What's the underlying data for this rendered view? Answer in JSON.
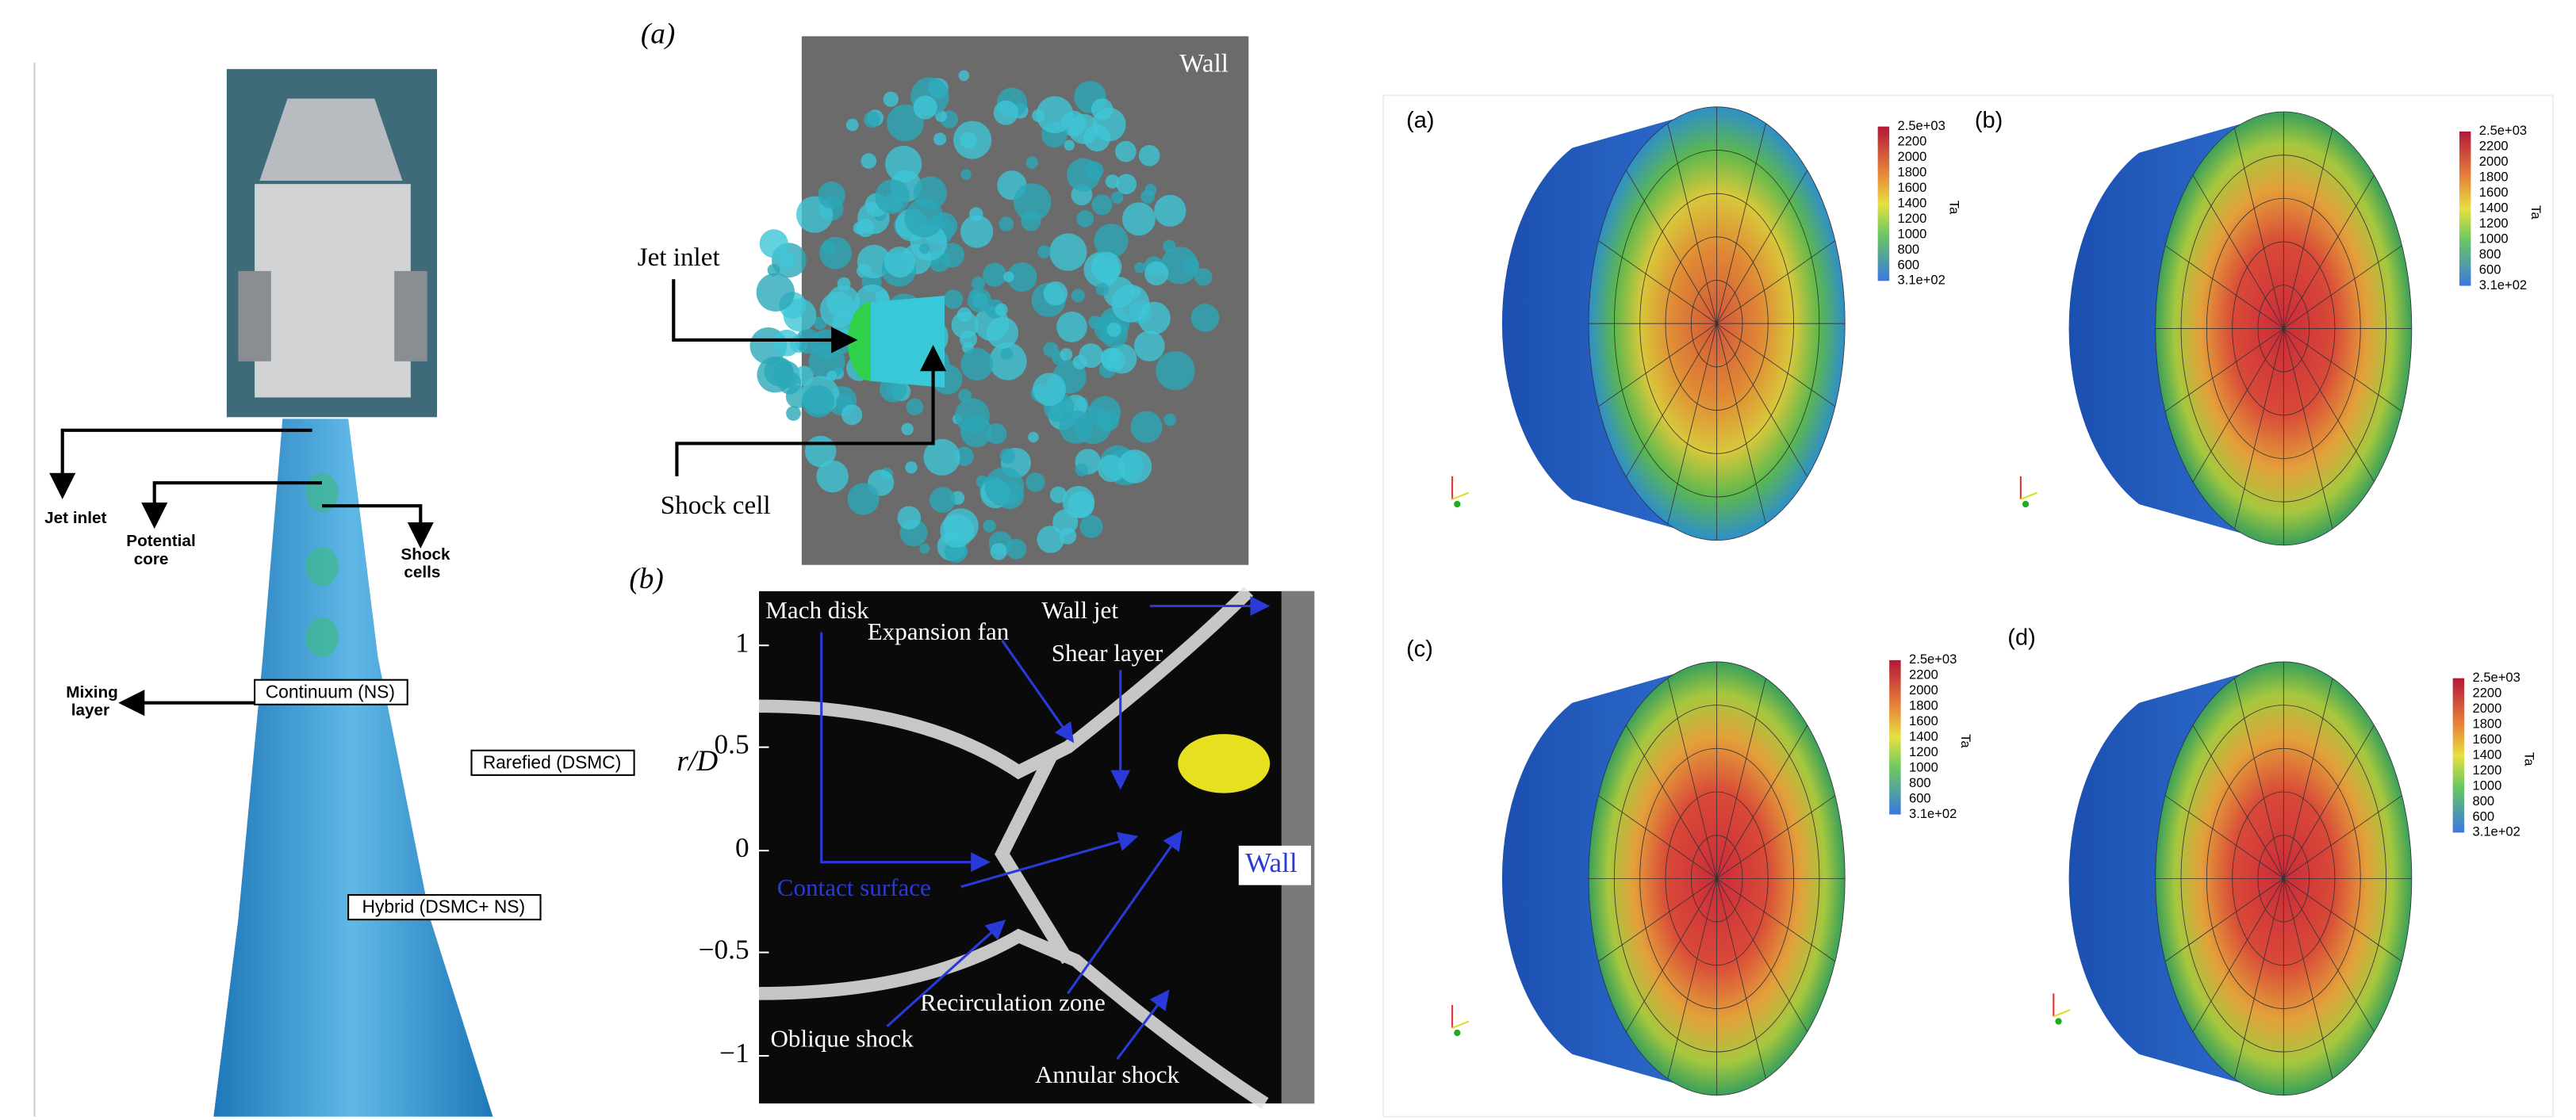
{
  "left_panel": {
    "jet_inlet": "Jet inlet",
    "potential_core": [
      "Potential",
      "core"
    ],
    "shock_cells": [
      "Shock",
      "cells"
    ],
    "mixing_layer": [
      "Mixing",
      "layer"
    ],
    "continuum": "Continuum (NS)",
    "rarefied": "Rarefied (DSMC)",
    "hybrid": "Hybrid (DSMC+ NS)"
  },
  "panel_a": {
    "label": "(a)",
    "wall": "Wall",
    "jet_inlet": "Jet inlet",
    "shock_cell": "Shock cell"
  },
  "panel_b": {
    "label": "(b)",
    "y_axis_label": "r/D",
    "y_ticks": [
      "1",
      "0.5",
      "0",
      "−0.5",
      "−1"
    ],
    "mach_disk": "Mach disk",
    "expansion_fan": "Expansion fan",
    "wall_jet": "Wall jet",
    "shear_layer": "Shear layer",
    "wall": "Wall",
    "contact_surface": "Contact surface",
    "oblique_shock": "Oblique shock",
    "recirculation_zone": "Recirculation zone",
    "annular_shock": "Annular shock"
  },
  "temperature_panels": [
    {
      "label": "(a)"
    },
    {
      "label": "(b)"
    },
    {
      "label": "(c)"
    },
    {
      "label": "(d)"
    }
  ],
  "colorbar": {
    "title": "Ta",
    "ticks": [
      "2.5e+03",
      "2200",
      "2000",
      "1800",
      "1600",
      "1400",
      "1200",
      "1000",
      "800",
      "600",
      "3.1e+02"
    ]
  }
}
